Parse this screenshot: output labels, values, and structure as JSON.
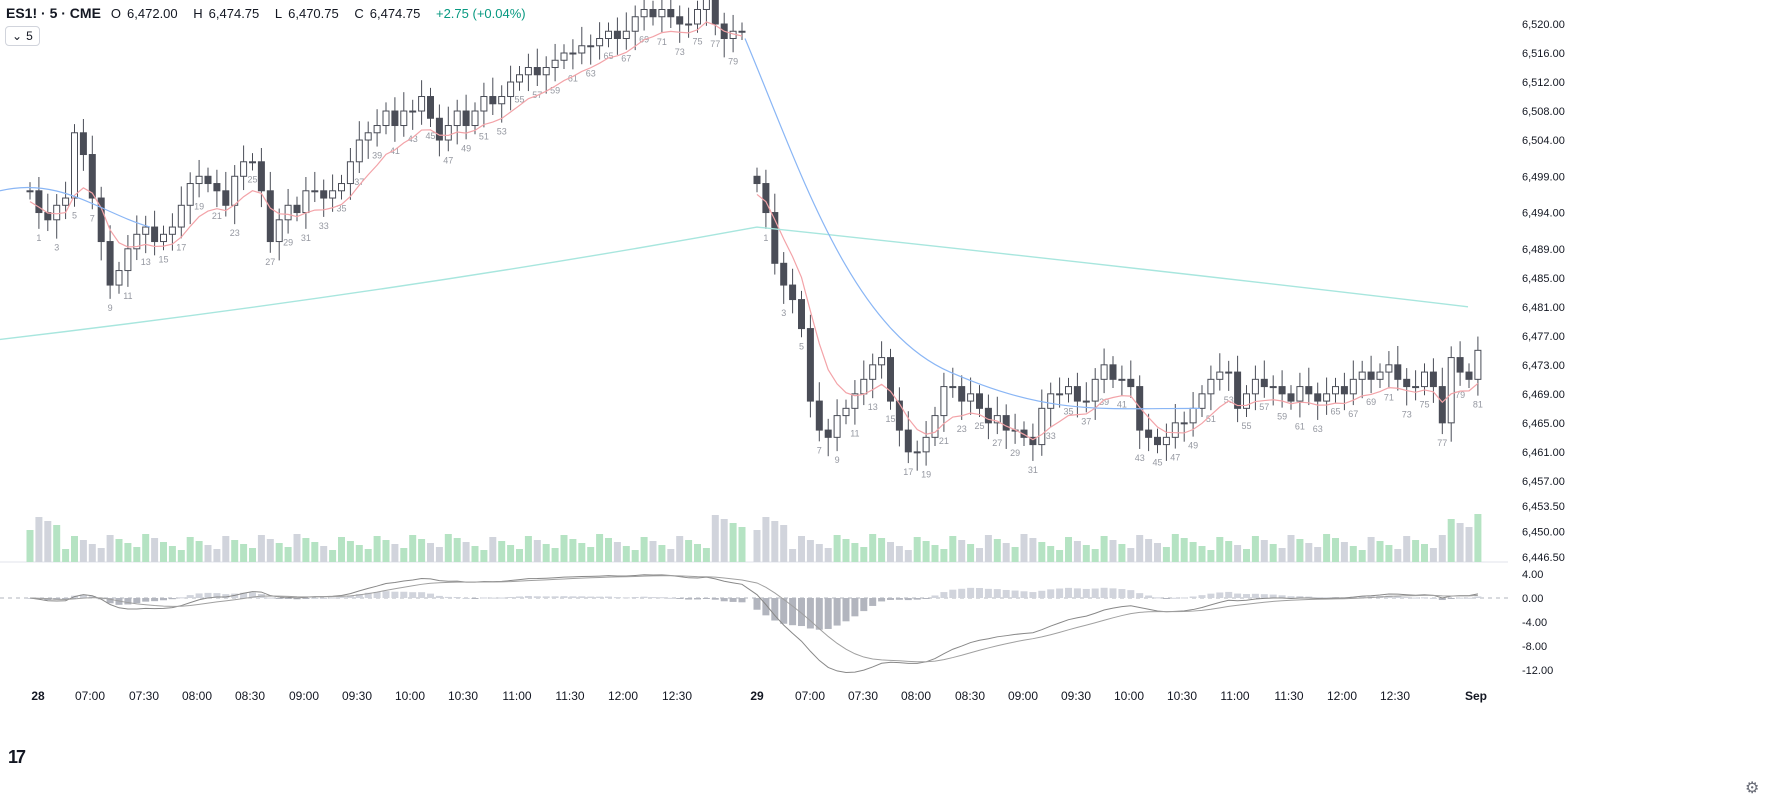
{
  "header": {
    "symbol": "ES1! · 5 · CME",
    "open_label": "O",
    "open": "6,472.00",
    "high_label": "H",
    "high": "6,474.75",
    "low_label": "L",
    "low": "6,470.75",
    "close_label": "C",
    "close": "6,474.75",
    "change": "+2.75 (+0.04%)"
  },
  "interval_button": {
    "icon": "chevron-down-icon",
    "label": "5"
  },
  "logo": {
    "text": "TV"
  },
  "settings": {
    "icon": "gear-icon"
  },
  "colors": {
    "bull_volume": "#b5e3c3",
    "bear_volume": "#d1d4dc",
    "candle_bear": "#4a4d57",
    "candle_bull_fill": "#ffffff",
    "candle_outline": "#4a4d57",
    "ema_fast": "#f3a3a8",
    "ema_mid": "#8ab6f5",
    "ema_slow": "#a8e6de",
    "last_volume": "#a9dbb8",
    "macd_line": "#888888",
    "signal_line": "#a0a0a0"
  },
  "chart_data": {
    "type": "candlestick",
    "x_ticks": [
      "28",
      "07:00",
      "07:30",
      "08:00",
      "08:30",
      "09:00",
      "09:30",
      "10:00",
      "10:30",
      "11:00",
      "11:30",
      "12:00",
      "12:30",
      "29",
      "07:00",
      "07:30",
      "08:00",
      "08:30",
      "09:00",
      "09:30",
      "10:00",
      "10:30",
      "11:00",
      "11:30",
      "12:00",
      "12:30",
      "Sep"
    ],
    "price_axis": [
      "6,520.00",
      "6,516.00",
      "6,512.00",
      "6,508.00",
      "6,504.00",
      "6,499.00",
      "6,494.00",
      "6,489.00",
      "6,485.00",
      "6,481.00",
      "6,477.00",
      "6,473.00",
      "6,469.00",
      "6,465.00",
      "6,461.00",
      "6,457.00",
      "6,453.50",
      "6,450.00",
      "6,446.50"
    ],
    "macd_axis": [
      "4.00",
      "0.00",
      "-4.00",
      "-8.00",
      "-12.00"
    ],
    "session1": {
      "open": 6497,
      "closes": [
        6497,
        6494,
        6493,
        6495,
        6496,
        6505,
        6502,
        6496,
        6490,
        6484,
        6486,
        6489,
        6491,
        6492,
        6490,
        6491,
        6492,
        6495,
        6498,
        6499,
        6498,
        6497,
        6495,
        6499,
        6501,
        6501,
        6497,
        6490,
        6493,
        6495,
        6494,
        6497,
        6497,
        6496,
        6497,
        6498,
        6501,
        6504,
        6505,
        6506,
        6508,
        6506,
        6508,
        6508,
        6510,
        6507,
        6504,
        6506,
        6508,
        6506,
        6508,
        6510,
        6509,
        6510,
        6512,
        6513,
        6514,
        6513,
        6514,
        6515,
        6516,
        6516,
        6517,
        6517,
        6518,
        6519,
        6518,
        6519,
        6521,
        6522,
        6521,
        6522,
        6521,
        6520,
        6520,
        6522,
        6525,
        6520,
        6518,
        6519,
        6519
      ],
      "labels": {
        "1": "1",
        "3": "3",
        "5": "5",
        "7": "7",
        "9": "9",
        "11": "11",
        "13": "13",
        "15": "15",
        "17": "17",
        "19": "19",
        "21": "21",
        "23": "23",
        "25": "25",
        "27": "27",
        "29": "29",
        "31": "31",
        "33": "33",
        "35": "35",
        "37": "37",
        "39": "39",
        "41": "41",
        "43": "43",
        "45": "45",
        "47": "47",
        "49": "49",
        "51": "51",
        "53": "53",
        "55": "55",
        "57": "57",
        "59": "59",
        "61": "61",
        "63": "63",
        "65": "65",
        "67": "67",
        "69": "69",
        "71": "71",
        "73": "73",
        "75": "75",
        "77": "77",
        "79": "79",
        "81": "81"
      }
    },
    "session2": {
      "open": 6499,
      "closes": [
        6498,
        6494,
        6487,
        6484,
        6482,
        6478,
        6468,
        6464,
        6463,
        6466,
        6467,
        6469,
        6471,
        6473,
        6474,
        6468,
        6464,
        6461,
        6461,
        6463,
        6466,
        6470,
        6470,
        6468,
        6469,
        6467,
        6465,
        6466,
        6464,
        6464,
        6463,
        6462,
        6467,
        6469,
        6469,
        6470,
        6468,
        6468,
        6471,
        6473,
        6471,
        6471,
        6470,
        6464,
        6463,
        6462,
        6463,
        6465,
        6465,
        6467,
        6469,
        6471,
        6472,
        6472,
        6467,
        6469,
        6471,
        6470,
        6470,
        6469,
        6468,
        6470,
        6469,
        6468,
        6469,
        6470,
        6469,
        6471,
        6472,
        6471,
        6472,
        6473,
        6471,
        6470,
        6470,
        6472,
        6470,
        6465,
        6474,
        6472,
        6471,
        6475
      ],
      "labels": {
        "1": "1",
        "3": "3",
        "5": "5",
        "7": "7",
        "9": "9",
        "11": "11",
        "13": "13",
        "15": "15",
        "17": "17",
        "19": "19",
        "21": "21",
        "23": "23",
        "25": "25",
        "27": "27",
        "29": "29",
        "31": "31",
        "33": "33",
        "35": "35",
        "37": "37",
        "39": "39",
        "41": "41",
        "43": "43",
        "45": "45",
        "47": "47",
        "49": "49",
        "51": "51",
        "53": "53",
        "55": "55",
        "57": "57",
        "59": "59",
        "61": "61",
        "63": "63",
        "65": "65",
        "67": "67",
        "69": "69",
        "71": "71",
        "73": "73",
        "75": "75",
        "77": "77",
        "79": "79",
        "81": "81"
      }
    },
    "prev_tail": {
      "closes": [
        6497,
        6494,
        6493,
        6495
      ],
      "labels": {
        "0": "79",
        "2": "81"
      }
    }
  }
}
